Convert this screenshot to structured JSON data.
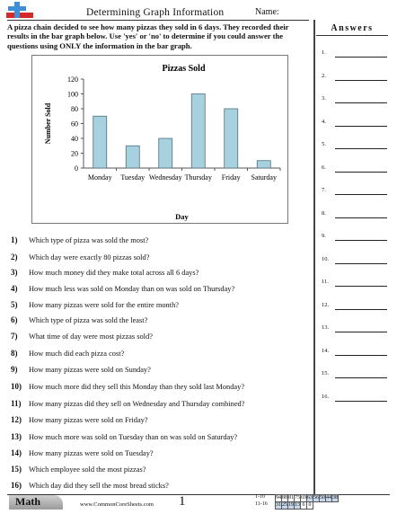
{
  "header": {
    "title": "Determining Graph Information",
    "name_label": "Name:"
  },
  "instructions": "A pizza chain decided to see how many pizzas they sold in 6 days. They recorded their results in the bar graph below. Use 'yes' or 'no' to determine if you could answer the questions using ONLY the information in the bar graph.",
  "chart_data": {
    "type": "bar",
    "title": "Pizzas Sold",
    "xlabel": "Day",
    "ylabel": "Number Sold",
    "categories": [
      "Monday",
      "Tuesday",
      "Wednesday",
      "Thursday",
      "Friday",
      "Saturday"
    ],
    "values": [
      70,
      30,
      40,
      100,
      80,
      10
    ],
    "ylim": [
      0,
      120
    ],
    "yticks": [
      "0",
      "20",
      "40",
      "60",
      "80",
      "100",
      "120"
    ],
    "bar_color": "#a8d1df",
    "grid": false,
    "legend": "none"
  },
  "questions": [
    {
      "num": "1)",
      "text": "Which type of pizza was sold the most?"
    },
    {
      "num": "2)",
      "text": "Which day were exactly 80 pizzas sold?"
    },
    {
      "num": "3)",
      "text": "How much money did they make total across all 6 days?"
    },
    {
      "num": "4)",
      "text": "How much less was sold on Monday than on was sold on Thursday?"
    },
    {
      "num": "5)",
      "text": "How many pizzas were sold for the entire month?"
    },
    {
      "num": "6)",
      "text": "Which type of pizza was sold the least?"
    },
    {
      "num": "7)",
      "text": "What time of day were most pizzas sold?"
    },
    {
      "num": "8)",
      "text": "How much did each pizza cost?"
    },
    {
      "num": "9)",
      "text": "How many pizzas were sold on Sunday?"
    },
    {
      "num": "10)",
      "text": "How much more did they sell this Monday than they sold last Monday?"
    },
    {
      "num": "11)",
      "text": "How many pizzas did they sell on Wednesday and Thursday combined?"
    },
    {
      "num": "12)",
      "text": "How many pizzas were sold on Friday?"
    },
    {
      "num": "13)",
      "text": "How much more was sold on Tuesday than on was sold on Saturday?"
    },
    {
      "num": "14)",
      "text": "How many pizzas were sold on Tuesday?"
    },
    {
      "num": "15)",
      "text": "Which employee sold the most pizzas?"
    },
    {
      "num": "16)",
      "text": "Which day did they sell the most bread sticks?"
    }
  ],
  "answers": {
    "title": "Answers",
    "numbers": [
      "1.",
      "2.",
      "3.",
      "4.",
      "5.",
      "6.",
      "7.",
      "8.",
      "9.",
      "10.",
      "11.",
      "12.",
      "13.",
      "14.",
      "15.",
      "16."
    ]
  },
  "footer": {
    "subject": "Math",
    "site": "www.CommonCoreSheets.com",
    "page": "1",
    "score_rows": [
      {
        "label": "1-10",
        "cells": [
          "94",
          "88",
          "81",
          "75",
          "69",
          "63",
          "56",
          "50",
          "44",
          "38"
        ]
      },
      {
        "label": "11-16",
        "cells": [
          "31",
          "25",
          "19",
          "13",
          "6",
          "0"
        ]
      }
    ]
  }
}
